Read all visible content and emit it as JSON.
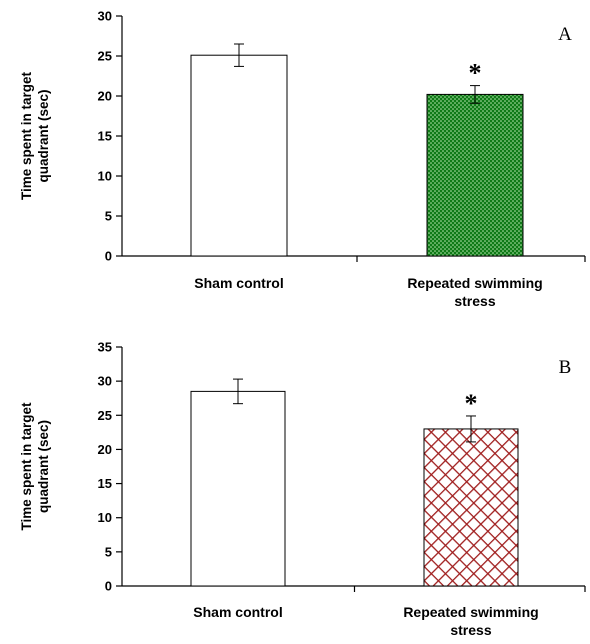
{
  "chart_data": [
    {
      "type": "bar",
      "panel_label": "A",
      "ylabel_lines": [
        "Time spent in target",
        "quadrant (sec)"
      ],
      "categories": [
        [
          "Sham control"
        ],
        [
          "Repeated swimming",
          "stress"
        ]
      ],
      "values": [
        25.1,
        20.2
      ],
      "errors": [
        1.4,
        1.1
      ],
      "significance": [
        "",
        "*"
      ],
      "ylim": [
        0,
        30
      ],
      "yticks": [
        0,
        5,
        10,
        15,
        20,
        25,
        30
      ],
      "bar_fills": [
        "white",
        "green-dotted"
      ],
      "colors": {
        "patterned_bar": "#0f7a17",
        "pattern_dots": "#b9e7b0"
      }
    },
    {
      "type": "bar",
      "panel_label": "B",
      "ylabel_lines": [
        "Time spent in target",
        "quadrant (sec)"
      ],
      "categories": [
        [
          "Sham control"
        ],
        [
          "Repeated swimming",
          "stress"
        ]
      ],
      "values": [
        28.5,
        23.0
      ],
      "errors": [
        1.8,
        1.9
      ],
      "significance": [
        "",
        "*"
      ],
      "ylim": [
        0,
        35
      ],
      "yticks": [
        0,
        5,
        10,
        15,
        20,
        25,
        30,
        35
      ],
      "bar_fills": [
        "white",
        "red-crosshatch"
      ],
      "colors": {
        "patterned_bar": "#a01e1e"
      }
    }
  ]
}
